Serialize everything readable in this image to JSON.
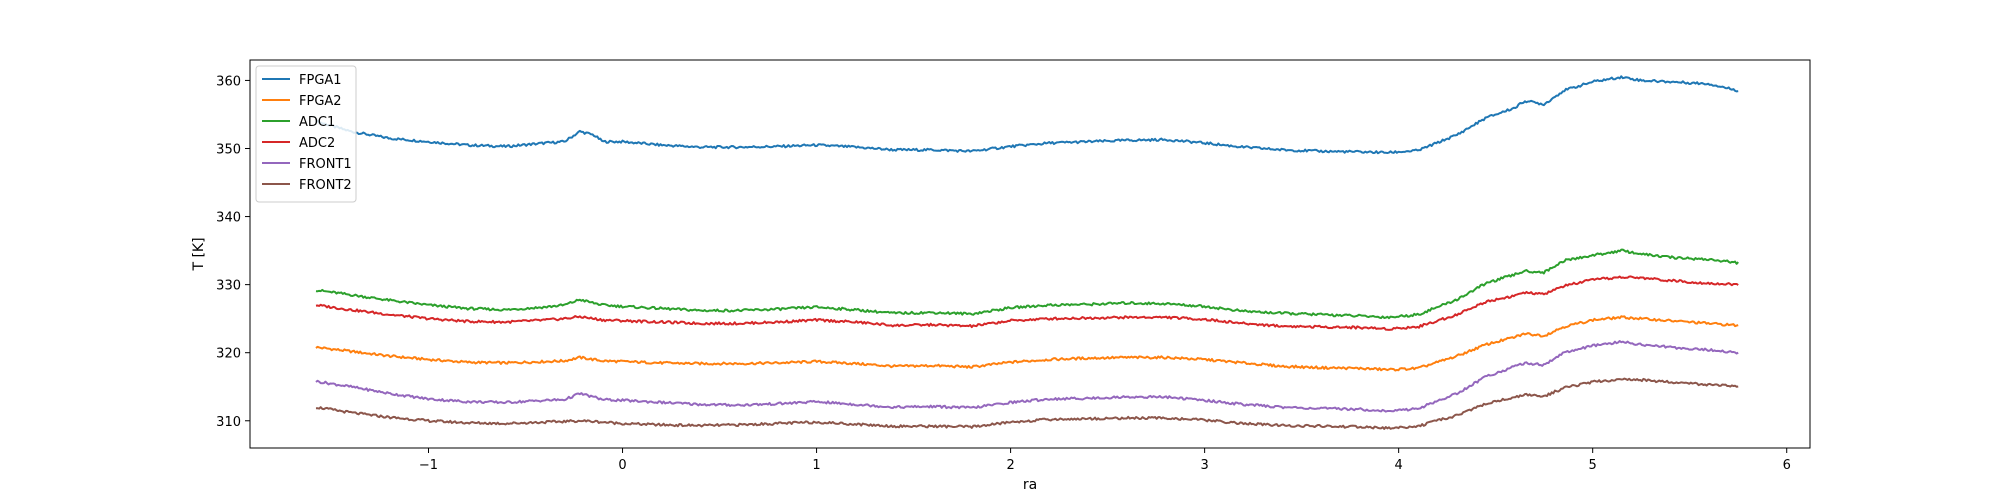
{
  "chart_data": {
    "type": "line",
    "xlabel": "ra",
    "ylabel": "T [K]",
    "xlim": [
      -1.92,
      6.12
    ],
    "ylim": [
      306,
      363
    ],
    "xticks": [
      -1,
      0,
      1,
      2,
      3,
      4,
      5,
      6
    ],
    "xtick_labels": [
      "−1",
      "0",
      "1",
      "2",
      "3",
      "4",
      "5",
      "6"
    ],
    "yticks": [
      310,
      320,
      330,
      340,
      350,
      360
    ],
    "ytick_labels": [
      "310",
      "320",
      "330",
      "340",
      "350",
      "360"
    ],
    "grid": false,
    "legend_position": "upper-left",
    "series": [
      {
        "name": "FPGA1",
        "color": "#1f77b4",
        "x": [
          -1.58,
          -1.4,
          -1.2,
          -1.0,
          -0.8,
          -0.6,
          -0.4,
          -0.3,
          -0.22,
          -0.15,
          -0.1,
          0.0,
          0.2,
          0.4,
          0.6,
          0.8,
          1.0,
          1.2,
          1.4,
          1.6,
          1.8,
          2.0,
          2.2,
          2.4,
          2.6,
          2.8,
          3.0,
          3.2,
          3.4,
          3.6,
          3.8,
          3.95,
          4.1,
          4.3,
          4.45,
          4.6,
          4.65,
          4.75,
          4.85,
          5.0,
          5.15,
          5.25,
          5.4,
          5.6,
          5.75
        ],
        "y": [
          354,
          352.5,
          351.5,
          351,
          350.5,
          350.3,
          350.8,
          351,
          352.5,
          352,
          351,
          351,
          350.5,
          350.2,
          350.2,
          350.3,
          350.5,
          350.2,
          349.8,
          349.8,
          349.6,
          350.3,
          350.8,
          351,
          351.2,
          351.3,
          350.8,
          350.2,
          349.8,
          349.6,
          349.5,
          349.4,
          349.7,
          352,
          354.5,
          356,
          357,
          356.5,
          358.5,
          359.8,
          360.5,
          360,
          359.8,
          359.5,
          358.5
        ]
      },
      {
        "name": "FPGA2",
        "color": "#ff7f0e",
        "x": [
          -1.58,
          -1.4,
          -1.2,
          -1.0,
          -0.8,
          -0.6,
          -0.4,
          -0.3,
          -0.22,
          -0.15,
          -0.1,
          0.0,
          0.2,
          0.4,
          0.6,
          0.8,
          1.0,
          1.2,
          1.4,
          1.6,
          1.8,
          2.0,
          2.2,
          2.4,
          2.6,
          2.8,
          3.0,
          3.2,
          3.4,
          3.6,
          3.8,
          3.95,
          4.1,
          4.3,
          4.45,
          4.6,
          4.65,
          4.75,
          4.85,
          5.0,
          5.15,
          5.25,
          5.4,
          5.6,
          5.75
        ],
        "y": [
          320.8,
          320.2,
          319.5,
          319,
          318.6,
          318.5,
          318.7,
          318.8,
          319.3,
          319,
          318.8,
          318.7,
          318.5,
          318.4,
          318.4,
          318.5,
          318.7,
          318.4,
          318,
          318.1,
          317.9,
          318.6,
          319,
          319.2,
          319.3,
          319.3,
          319,
          318.5,
          318,
          317.8,
          317.7,
          317.5,
          317.7,
          319.5,
          321.2,
          322.3,
          322.8,
          322.5,
          323.8,
          324.8,
          325.2,
          325,
          324.7,
          324.3,
          324
        ]
      },
      {
        "name": "ADC1",
        "color": "#2ca02c",
        "x": [
          -1.58,
          -1.4,
          -1.2,
          -1.0,
          -0.8,
          -0.6,
          -0.4,
          -0.3,
          -0.22,
          -0.15,
          -0.1,
          0.0,
          0.2,
          0.4,
          0.6,
          0.8,
          1.0,
          1.2,
          1.4,
          1.6,
          1.8,
          2.0,
          2.2,
          2.4,
          2.6,
          2.8,
          3.0,
          3.2,
          3.4,
          3.6,
          3.8,
          3.95,
          4.1,
          4.3,
          4.45,
          4.6,
          4.65,
          4.75,
          4.85,
          5.0,
          5.15,
          5.25,
          5.4,
          5.6,
          5.75
        ],
        "y": [
          329.2,
          328.5,
          327.7,
          327,
          326.5,
          326.3,
          326.7,
          327,
          327.8,
          327.3,
          327,
          326.8,
          326.5,
          326.2,
          326.2,
          326.4,
          326.7,
          326.3,
          325.8,
          325.9,
          325.7,
          326.6,
          327,
          327.1,
          327.3,
          327.2,
          326.8,
          326.1,
          325.8,
          325.6,
          325.4,
          325.2,
          325.6,
          327.8,
          330.2,
          331.5,
          332,
          331.8,
          333.5,
          334.3,
          335,
          334.5,
          334,
          333.7,
          333.2
        ]
      },
      {
        "name": "ADC2",
        "color": "#d62728",
        "x": [
          -1.58,
          -1.4,
          -1.2,
          -1.0,
          -0.8,
          -0.6,
          -0.4,
          -0.3,
          -0.22,
          -0.15,
          -0.1,
          0.0,
          0.2,
          0.4,
          0.6,
          0.8,
          1.0,
          1.2,
          1.4,
          1.6,
          1.8,
          2.0,
          2.2,
          2.4,
          2.6,
          2.8,
          3.0,
          3.2,
          3.4,
          3.6,
          3.8,
          3.95,
          4.1,
          4.3,
          4.45,
          4.6,
          4.65,
          4.75,
          4.85,
          5.0,
          5.15,
          5.25,
          5.4,
          5.6,
          5.75
        ],
        "y": [
          327,
          326.3,
          325.6,
          325,
          324.6,
          324.5,
          324.8,
          325,
          325.3,
          325,
          324.8,
          324.7,
          324.5,
          324.3,
          324.3,
          324.5,
          324.8,
          324.5,
          324,
          324.1,
          323.9,
          324.7,
          325,
          325.1,
          325.2,
          325.2,
          324.9,
          324.3,
          323.9,
          323.8,
          323.7,
          323.5,
          323.8,
          325.6,
          327.5,
          328.4,
          328.8,
          328.6,
          329.8,
          330.7,
          331.1,
          331,
          330.6,
          330.2,
          330
        ]
      },
      {
        "name": "FRONT1",
        "color": "#9467bd",
        "x": [
          -1.58,
          -1.4,
          -1.2,
          -1.0,
          -0.8,
          -0.6,
          -0.4,
          -0.3,
          -0.22,
          -0.15,
          -0.1,
          0.0,
          0.2,
          0.4,
          0.6,
          0.8,
          1.0,
          1.2,
          1.4,
          1.6,
          1.8,
          2.0,
          2.2,
          2.4,
          2.6,
          2.8,
          3.0,
          3.2,
          3.4,
          3.6,
          3.8,
          3.95,
          4.1,
          4.3,
          4.45,
          4.6,
          4.65,
          4.75,
          4.85,
          5.0,
          5.15,
          5.25,
          5.4,
          5.6,
          5.75
        ],
        "y": [
          315.8,
          315,
          314,
          313.2,
          312.8,
          312.7,
          313,
          313.1,
          314,
          313.5,
          313.1,
          313,
          312.7,
          312.4,
          312.3,
          312.5,
          312.8,
          312.4,
          312,
          312.1,
          311.9,
          312.7,
          313.2,
          313.3,
          313.5,
          313.5,
          313,
          312.4,
          312,
          311.8,
          311.7,
          311.4,
          311.8,
          314,
          316.5,
          318,
          318.5,
          318.2,
          320,
          321,
          321.6,
          321.2,
          320.8,
          320.4,
          320
        ]
      },
      {
        "name": "FRONT2",
        "color": "#8c564b",
        "x": [
          -1.58,
          -1.4,
          -1.2,
          -1.0,
          -0.8,
          -0.6,
          -0.4,
          -0.3,
          -0.22,
          -0.15,
          -0.1,
          0.0,
          0.2,
          0.4,
          0.6,
          0.8,
          1.0,
          1.2,
          1.4,
          1.6,
          1.8,
          2.0,
          2.2,
          2.4,
          2.6,
          2.8,
          3.0,
          3.2,
          3.4,
          3.6,
          3.8,
          3.95,
          4.1,
          4.3,
          4.45,
          4.6,
          4.65,
          4.75,
          4.85,
          5.0,
          5.15,
          5.25,
          5.4,
          5.6,
          5.75
        ],
        "y": [
          312,
          311.2,
          310.5,
          310,
          309.7,
          309.6,
          309.8,
          309.9,
          310,
          309.9,
          309.8,
          309.6,
          309.4,
          309.3,
          309.4,
          309.6,
          309.8,
          309.5,
          309.2,
          309.2,
          309.1,
          309.8,
          310.2,
          310.3,
          310.4,
          310.4,
          310.1,
          309.6,
          309.3,
          309.2,
          309.1,
          308.9,
          309.2,
          310.8,
          312.5,
          313.5,
          313.8,
          313.6,
          314.8,
          315.7,
          316.1,
          316,
          315.7,
          315.3,
          315
        ]
      }
    ]
  }
}
